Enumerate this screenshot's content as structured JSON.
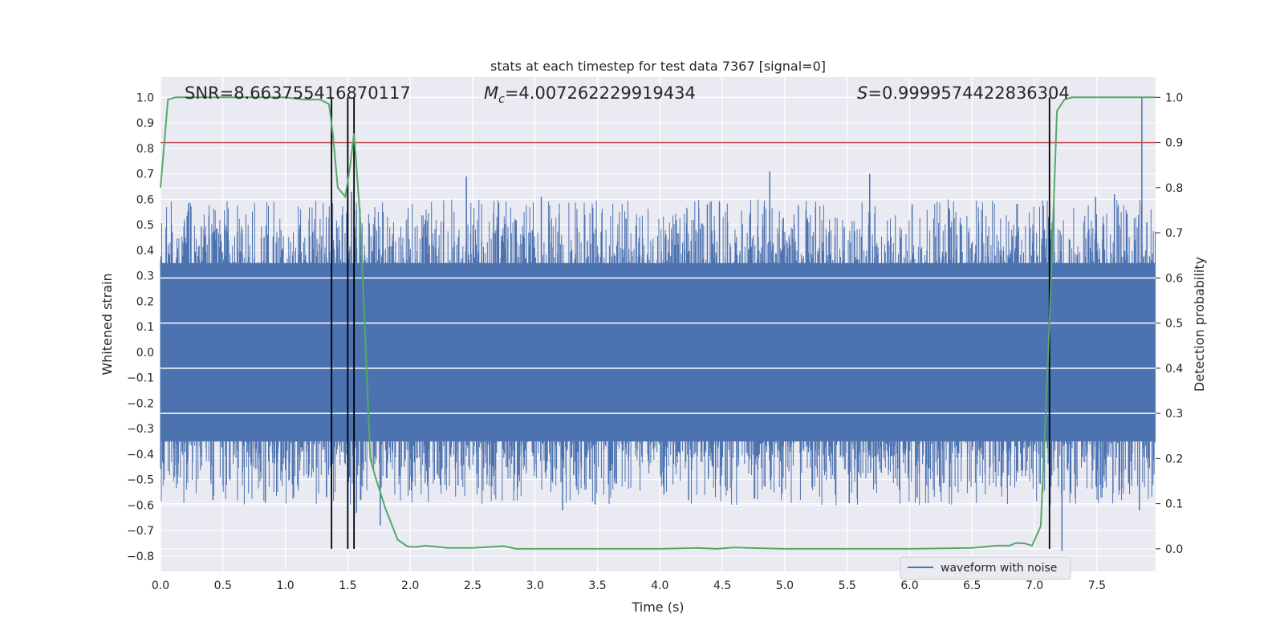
{
  "chart_data": {
    "type": "line",
    "title": "stats at each timestep for test data 7367 [signal=0]",
    "xlabel": "Time (s)",
    "ylabel": "Whitened strain",
    "ylabel_right": "Detection probability",
    "xlim": [
      0.0,
      7.97
    ],
    "ylim": [
      -0.86,
      1.08
    ],
    "ylim_right": [
      -0.05,
      1.045
    ],
    "x_ticks": [
      0.0,
      0.5,
      1.0,
      1.5,
      2.0,
      2.5,
      3.0,
      3.5,
      4.0,
      4.5,
      5.0,
      5.5,
      6.0,
      6.5,
      7.0,
      7.5
    ],
    "x_tick_labels": [
      "0.0",
      "0.5",
      "1.0",
      "1.5",
      "2.0",
      "2.5",
      "3.0",
      "3.5",
      "4.0",
      "4.5",
      "5.0",
      "5.5",
      "6.0",
      "6.5",
      "7.0",
      "7.5"
    ],
    "y_ticks": [
      1.0,
      0.9,
      0.8,
      0.7,
      0.6,
      0.5,
      0.4,
      0.3,
      0.2,
      0.1,
      0.0,
      -0.1,
      -0.2,
      -0.3,
      -0.4,
      -0.5,
      -0.6,
      -0.7,
      -0.8
    ],
    "y_tick_labels": [
      "1.0",
      "0.9",
      "0.8",
      "0.7",
      "0.6",
      "0.5",
      "0.4",
      "0.3",
      "0.2",
      "0.1",
      "0.0",
      "−0.1",
      "−0.2",
      "−0.3",
      "−0.4",
      "−0.5",
      "−0.6",
      "−0.7",
      "−0.8"
    ],
    "y2_ticks": [
      1.0,
      0.9,
      0.8,
      0.7,
      0.6,
      0.5,
      0.4,
      0.3,
      0.2,
      0.1,
      0.0
    ],
    "y2_tick_labels": [
      "1.0",
      "0.9",
      "0.8",
      "0.7",
      "0.6",
      "0.5",
      "0.4",
      "0.3",
      "0.2",
      "0.1",
      "0.0"
    ],
    "annotations": {
      "snr": "SNR=8.663755416870117",
      "mc_symbol": "M",
      "mc_sub": "c",
      "mc_value": "=4.007262229919434",
      "s_symbol": "S",
      "s_value": "=0.9999574422836304"
    },
    "threshold": {
      "y2": 0.9,
      "color": "#c44e52"
    },
    "vertical_lines": [
      1.37,
      1.5,
      1.55,
      7.12
    ],
    "waveform": {
      "name": "waveform with noise",
      "color": "#4c72b0",
      "band_low": -0.35,
      "band_high": 0.35,
      "peaks": [
        [
          0.42,
          0.47
        ],
        [
          1.53,
          0.63
        ],
        [
          2.45,
          0.69
        ],
        [
          3.05,
          0.61
        ],
        [
          4.38,
          0.58
        ],
        [
          4.88,
          0.71
        ],
        [
          5.68,
          0.7
        ],
        [
          6.02,
          0.58
        ],
        [
          7.49,
          0.61
        ],
        [
          7.64,
          0.62
        ],
        [
          7.86,
          1.0
        ],
        [
          7.9,
          0.51
        ]
      ],
      "troughs": [
        [
          0.42,
          -0.58
        ],
        [
          0.84,
          -0.59
        ],
        [
          1.33,
          -0.57
        ],
        [
          1.57,
          -0.63
        ],
        [
          1.76,
          -0.68
        ],
        [
          3.22,
          -0.62
        ],
        [
          4.23,
          -0.58
        ],
        [
          6.06,
          -0.57
        ],
        [
          7.22,
          -0.78
        ],
        [
          7.84,
          -0.62
        ]
      ]
    },
    "detection_probability": {
      "name": "Detection probability",
      "color": "#55a868",
      "x": [
        0.0,
        0.06,
        0.12,
        0.2,
        0.3,
        0.5,
        0.8,
        1.0,
        1.15,
        1.28,
        1.35,
        1.38,
        1.42,
        1.48,
        1.52,
        1.55,
        1.6,
        1.65,
        1.68,
        1.72,
        1.8,
        1.9,
        1.98,
        2.05,
        2.12,
        2.3,
        2.5,
        2.75,
        2.85,
        3.5,
        4.0,
        4.3,
        4.45,
        4.6,
        4.7,
        5.0,
        5.5,
        6.0,
        6.5,
        6.7,
        6.8,
        6.85,
        6.92,
        6.98,
        7.05,
        7.12,
        7.18,
        7.24,
        7.3,
        7.97
      ],
      "y": [
        0.8,
        0.995,
        1.0,
        1.0,
        1.0,
        1.0,
        1.0,
        1.0,
        0.995,
        0.995,
        0.985,
        0.92,
        0.8,
        0.78,
        0.85,
        0.92,
        0.73,
        0.4,
        0.2,
        0.16,
        0.09,
        0.02,
        0.005,
        0.004,
        0.007,
        0.002,
        0.002,
        0.006,
        0.0,
        0.0,
        0.0,
        0.002,
        0.0,
        0.003,
        0.002,
        0.0,
        0.0,
        0.0,
        0.002,
        0.007,
        0.007,
        0.013,
        0.012,
        0.007,
        0.05,
        0.5,
        0.97,
        0.995,
        1.0,
        1.0
      ]
    }
  }
}
